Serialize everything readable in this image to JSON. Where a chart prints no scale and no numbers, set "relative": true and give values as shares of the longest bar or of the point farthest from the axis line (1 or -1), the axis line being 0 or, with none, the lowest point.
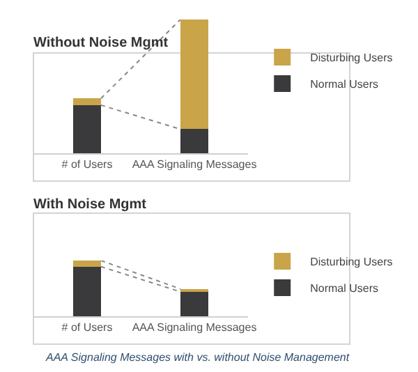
{
  "chart_data": [
    {
      "type": "bar",
      "title": "Without Noise Mgmt",
      "categories": [
        "# of Users",
        "AAA Signaling Messages"
      ],
      "stacked": true,
      "relative": true,
      "legend": "right",
      "series": [
        {
          "name": "Normal Users",
          "color": "#3a3a3c",
          "values": [
            0.36,
            0.18
          ]
        },
        {
          "name": "Disturbing Users",
          "color": "#c9a449",
          "values": [
            0.05,
            0.82
          ]
        }
      ]
    },
    {
      "type": "bar",
      "title": "With Noise Mgmt",
      "categories": [
        "# of Users",
        "AAA Signaling Messages"
      ],
      "stacked": true,
      "relative": true,
      "legend": "right",
      "series": [
        {
          "name": "Normal Users",
          "color": "#3a3a3c",
          "values": [
            0.89,
            0.44
          ]
        },
        {
          "name": "Disturbing Users",
          "color": "#c9a449",
          "values": [
            0.11,
            0.05
          ]
        }
      ],
      "annotations": [
        "AAA Signaling Messages with vs. without Noise Management"
      ]
    }
  ]
}
